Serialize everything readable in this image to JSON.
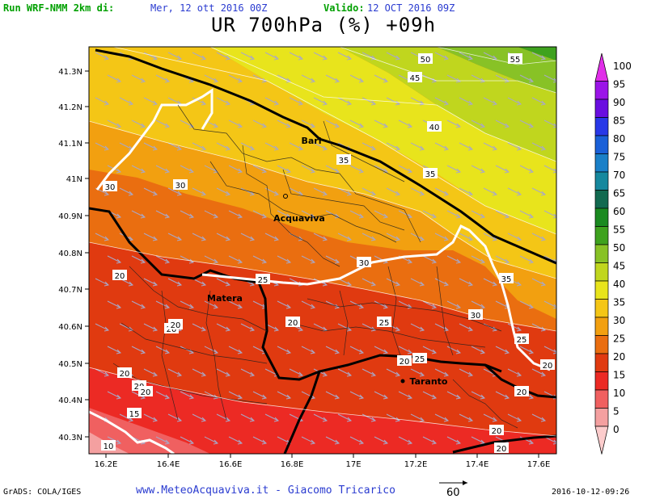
{
  "header": {
    "run_label": "Run WRF-NMM 2km di:",
    "run_date": "Mer, 12 ott 2016 00Z",
    "valid_label": "Valido:",
    "valid_date": "12 OCT 2016 09Z"
  },
  "title": "UR 700hPa (%) +09h",
  "footer": {
    "grads": "GrADS: COLA/IGES",
    "credit": "www.MeteoAcquaviva.it - Giacomo Tricarico",
    "vector_ref": "60",
    "timestamp": "2016-10-12-09:26"
  },
  "map": {
    "lon_ticks": [
      "16.2E",
      "16.4E",
      "16.6E",
      "16.8E",
      "17E",
      "17.2E",
      "17.4E",
      "17.6E"
    ],
    "lat_ticks": [
      "41.3N",
      "41.2N",
      "41.1N",
      "41N",
      "40.9N",
      "40.8N",
      "40.7N",
      "40.6N",
      "40.5N",
      "40.4N",
      "40.3N"
    ],
    "cities": [
      {
        "name": "Bari"
      },
      {
        "name": "Acquaviva"
      },
      {
        "name": "Matera"
      },
      {
        "name": "Taranto"
      }
    ],
    "contour_labels": [
      "50",
      "55",
      "45",
      "40",
      "35",
      "35",
      "30",
      "30",
      "35",
      "30",
      "25",
      "30",
      "25",
      "20",
      "20",
      "20",
      "20",
      "20",
      "20",
      "20",
      "25",
      "20",
      "20",
      "25",
      "20",
      "15",
      "10",
      "20",
      "20"
    ]
  },
  "legend": {
    "levels": [
      "100",
      "95",
      "90",
      "85",
      "80",
      "75",
      "70",
      "65",
      "60",
      "55",
      "50",
      "45",
      "40",
      "35",
      "30",
      "25",
      "20",
      "15",
      "10",
      "5",
      "0"
    ],
    "colors": [
      "#e02ee8",
      "#9b14e8",
      "#6a0ee0",
      "#2838e8",
      "#1a60d8",
      "#1a80c8",
      "#16889e",
      "#126a50",
      "#1a8a20",
      "#3ea21e",
      "#88c226",
      "#c0d61e",
      "#e8e41c",
      "#f4c616",
      "#f2a010",
      "#ea6e10",
      "#e03a10",
      "#ec2a24",
      "#f06060",
      "#f4a0a0",
      "#fccccc"
    ]
  }
}
